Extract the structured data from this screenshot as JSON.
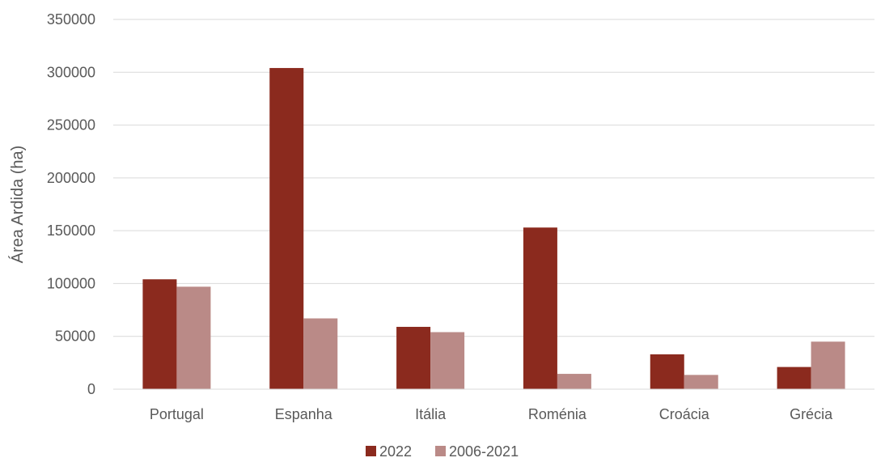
{
  "chart_data": {
    "type": "bar",
    "title": "",
    "xlabel": "",
    "ylabel": "Área Ardida (ha)",
    "categories": [
      "Portugal",
      "Espanha",
      "Itália",
      "Roménia",
      "Croácia",
      "Grécia"
    ],
    "series": [
      {
        "name": "2022",
        "color": "#8B2A1E",
        "values": [
          104000,
          304000,
          59000,
          153000,
          33000,
          21000
        ]
      },
      {
        "name": "2006-2021",
        "color": "#BA8A87",
        "values": [
          97000,
          67000,
          54000,
          14500,
          13500,
          45000
        ]
      }
    ],
    "ylim": [
      0,
      350000
    ],
    "yticks": [
      0,
      50000,
      100000,
      150000,
      200000,
      250000,
      300000,
      350000
    ],
    "grid": true,
    "legend_position": "bottom"
  }
}
